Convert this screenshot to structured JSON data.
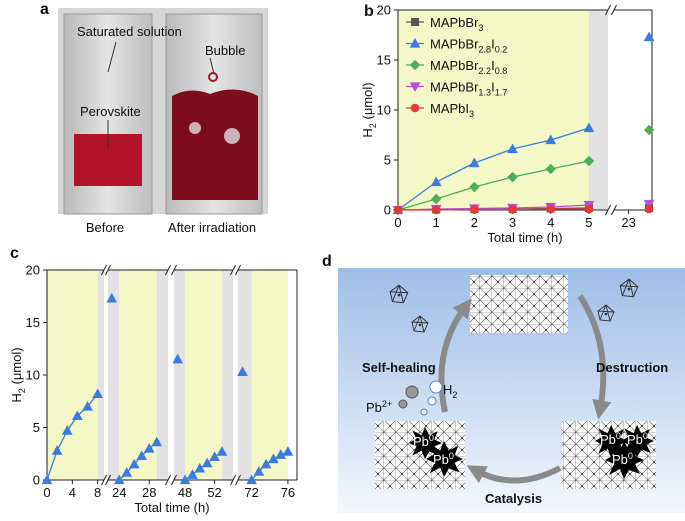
{
  "panel_labels": [
    "a",
    "b",
    "c",
    "d"
  ],
  "photo": {
    "solution": "Saturated solution",
    "perovskite": "Perovskite",
    "bubble": "Bubble",
    "before": "Before",
    "after": "After irradiation"
  },
  "chart_data": [
    {
      "type": "line",
      "xlabel": "Total time (h)",
      "ylabel": "H2 (μmol)",
      "ylim": [
        0,
        20
      ],
      "yticks": [
        0,
        5,
        10,
        15,
        20
      ],
      "x_segments": [
        {
          "xlim": [
            0,
            5.5
          ],
          "xticks": [
            0,
            1,
            2,
            3,
            4,
            5
          ]
        },
        {
          "xlim": [
            22.5,
            23.8
          ],
          "xticks": [
            23
          ]
        }
      ],
      "x": [
        0,
        1,
        2,
        3,
        4,
        5,
        23.7
      ],
      "series": [
        {
          "name": "MAPbBr3",
          "color": "#555555",
          "marker": "square",
          "values": [
            0,
            0.05,
            0.1,
            0.1,
            0.15,
            0.2,
            0.2
          ]
        },
        {
          "name": "MAPbBr2.8I0.2",
          "color": "#3b7be0",
          "marker": "triangle",
          "values": [
            0,
            2.8,
            4.7,
            6.1,
            7.0,
            8.2,
            17.3
          ]
        },
        {
          "name": "MAPbBr2.2I0.8",
          "color": "#4caf50",
          "marker": "diamond",
          "values": [
            0,
            1.1,
            2.3,
            3.3,
            4.1,
            4.9,
            8.0
          ]
        },
        {
          "name": "MAPbBr1.3I1.7",
          "color": "#b44fd6",
          "marker": "triangle-down",
          "values": [
            0,
            0.1,
            0.15,
            0.2,
            0.3,
            0.5,
            0.6
          ]
        },
        {
          "name": "MAPbI3",
          "color": "#e53935",
          "marker": "circle",
          "values": [
            0,
            0,
            0.05,
            0.05,
            0.1,
            0.1,
            0.1
          ]
        }
      ]
    },
    {
      "type": "line",
      "xlabel": "Total time (h)",
      "ylabel": "H2 (μmol)",
      "ylim": [
        0,
        20
      ],
      "yticks": [
        0,
        5,
        10,
        15,
        20
      ],
      "x_segments": [
        {
          "xlim": [
            0,
            9
          ],
          "xticks": [
            0,
            4,
            8
          ]
        },
        {
          "xlim": [
            22.5,
            30.5
          ],
          "xticks": [
            24,
            28
          ]
        },
        {
          "xlim": [
            46.5,
            54.5
          ],
          "xticks": [
            48,
            52
          ]
        },
        {
          "xlim": [
            70.5,
            77
          ],
          "xticks": [
            72,
            76
          ]
        }
      ],
      "series": [
        {
          "color": "#3b7be0",
          "marker": "triangle",
          "x": [
            0,
            1.6,
            3.2,
            4.8,
            6.4,
            8,
            null,
            23,
            null,
            24,
            25,
            26,
            27,
            28,
            29,
            null,
            47,
            null,
            48,
            49,
            50,
            51,
            52,
            53,
            null,
            71,
            null,
            72,
            72.8,
            73.6,
            74.4,
            75.2,
            76
          ],
          "values": [
            0,
            2.8,
            4.7,
            6.1,
            7.0,
            8.2,
            null,
            17.3,
            null,
            0,
            0.7,
            1.5,
            2.3,
            3.0,
            3.6,
            null,
            11.5,
            null,
            0,
            0.5,
            1.1,
            1.6,
            2.2,
            2.7,
            null,
            10.3,
            null,
            0,
            0.8,
            1.5,
            2.0,
            2.4,
            2.7
          ]
        }
      ]
    }
  ],
  "diagram": {
    "self_healing": "Self-healing",
    "destruction": "Destruction",
    "catalysis": "Catalysis",
    "h2": "H2",
    "pb2": "Pb2+",
    "pb0": "Pb0"
  }
}
